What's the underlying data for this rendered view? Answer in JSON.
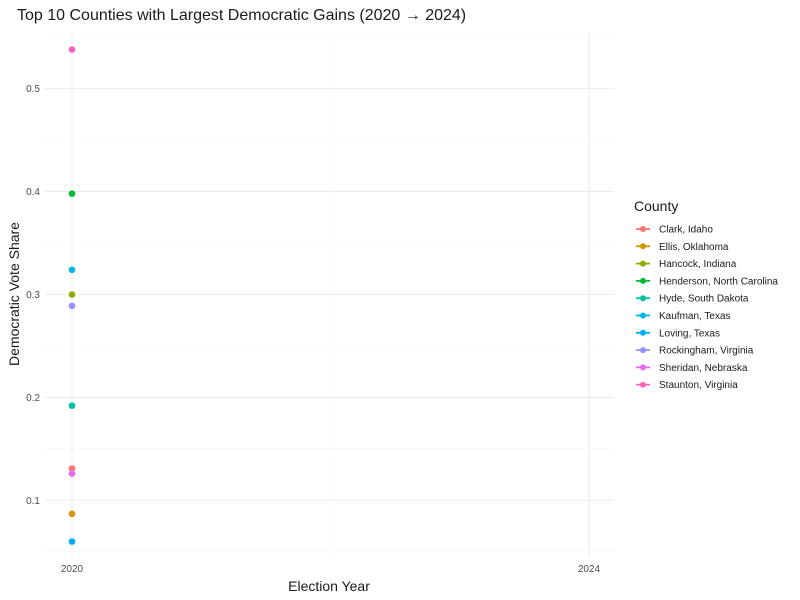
{
  "chart_data": {
    "type": "scatter",
    "title": "Top 10 Counties with Largest Democratic Gains (2020 → 2024)",
    "xlabel": "Election Year",
    "ylabel": "Democratic Vote Share",
    "x_ticks": [
      "2020",
      "2024"
    ],
    "y_ticks": [
      0.1,
      0.2,
      0.3,
      0.4,
      0.5
    ],
    "y_tick_labels": [
      "0.1",
      "0.2",
      "0.3",
      "0.4",
      "0.5"
    ],
    "ylim": [
      0.045,
      0.555
    ],
    "grid": true,
    "legend_title": "County",
    "legend_position": "right",
    "series": [
      {
        "name": "Clark, Idaho",
        "color": "#F8766D",
        "x": "2020",
        "y": 0.131
      },
      {
        "name": "Ellis, Oklahoma",
        "color": "#D39200",
        "x": "2020",
        "y": 0.087
      },
      {
        "name": "Hancock, Indiana",
        "color": "#93AA00",
        "x": "2020",
        "y": 0.3
      },
      {
        "name": "Henderson, North Carolina",
        "color": "#00BA38",
        "x": "2020",
        "y": 0.398
      },
      {
        "name": "Hyde, South Dakota",
        "color": "#00C19F",
        "x": "2020",
        "y": 0.192
      },
      {
        "name": "Kaufman, Texas",
        "color": "#00B9E3",
        "x": "2020",
        "y": 0.324
      },
      {
        "name": "Loving, Texas",
        "color": "#00ADFA",
        "x": "2020",
        "y": 0.06
      },
      {
        "name": "Rockingham, Virginia",
        "color": "#9590FF",
        "x": "2020",
        "y": 0.289
      },
      {
        "name": "Sheridan, Nebraska",
        "color": "#E76BF3",
        "x": "2020",
        "y": 0.126
      },
      {
        "name": "Staunton, Virginia",
        "color": "#FF62BC",
        "x": "2020",
        "y": 0.538
      }
    ]
  }
}
